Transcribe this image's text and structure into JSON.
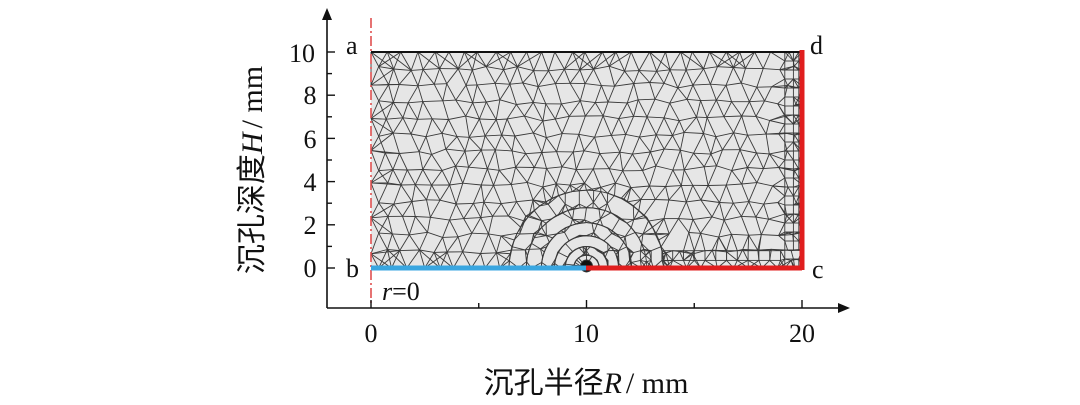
{
  "diagram": {
    "type": "fem-mesh",
    "x_axis": {
      "title_cn": "沉孔半径",
      "symbol": "R",
      "unit": "/ mm",
      "ticks": [
        "0",
        "10",
        "20"
      ],
      "range": [
        0,
        20
      ]
    },
    "y_axis": {
      "title_cn": "沉孔深度",
      "symbol": "H",
      "unit": "/ mm",
      "ticks": [
        "0",
        "2",
        "4",
        "6",
        "8",
        "10"
      ],
      "range": [
        0,
        10
      ]
    },
    "corners": {
      "a": "a",
      "b": "b",
      "c": "c",
      "d": "d"
    },
    "symmetry_label": {
      "symbol": "r",
      "eq": "=0"
    },
    "colors": {
      "mesh": "#3a3a3a",
      "fill": "#e6e6e6",
      "symmetry_axis": "#e05050",
      "boundary_blue": "#3aa6e0",
      "boundary_red": "#e01e1e",
      "axis": "#111111"
    }
  }
}
